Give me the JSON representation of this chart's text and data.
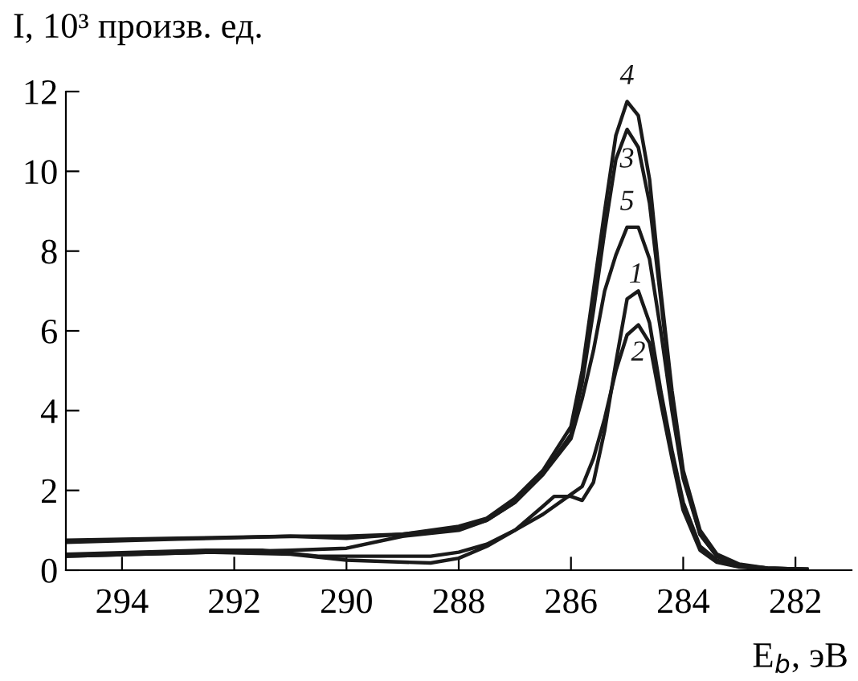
{
  "chart_data": {
    "type": "line",
    "xlabel": "E$_{b}$, эВ",
    "ylabel": "I, 10³ произв. ед.",
    "xlim": [
      295,
      281
    ],
    "xticks": [
      294,
      292,
      290,
      288,
      286,
      284,
      282
    ],
    "ylim": [
      0,
      12
    ],
    "yticks": [
      0,
      2,
      4,
      6,
      8,
      10,
      12
    ],
    "grid": false,
    "legend": false,
    "marker": "none",
    "line_style": "solid",
    "series": [
      {
        "name": "1",
        "color": "#1a1a1a",
        "x": [
          295,
          292.5,
          291.5,
          290.5,
          289,
          288.5,
          288,
          287.5,
          287,
          286.5,
          286.3,
          286,
          285.8,
          285.6,
          285.4,
          285.2,
          285.0,
          284.8,
          284.6,
          284.4,
          284.2,
          284.0,
          283.7,
          283.4,
          283.0,
          282.5,
          281.8
        ],
        "values": [
          0.4,
          0.5,
          0.5,
          0.35,
          0.35,
          0.35,
          0.45,
          0.65,
          1.0,
          1.6,
          1.85,
          1.85,
          1.75,
          2.2,
          3.5,
          5.2,
          6.8,
          7.0,
          6.2,
          4.5,
          3.0,
          1.7,
          0.6,
          0.25,
          0.1,
          0.04,
          0.02
        ]
      },
      {
        "name": "2",
        "color": "#1a1a1a",
        "x": [
          295,
          292.5,
          291,
          290,
          288.5,
          288,
          287.5,
          287,
          286.5,
          286,
          285.8,
          285.6,
          285.4,
          285.2,
          285.0,
          284.8,
          284.6,
          284.4,
          284.2,
          284.0,
          283.7,
          283.4,
          283.0,
          282.5,
          281.8
        ],
        "values": [
          0.35,
          0.45,
          0.4,
          0.25,
          0.18,
          0.3,
          0.6,
          1.0,
          1.4,
          1.9,
          2.1,
          2.8,
          3.8,
          5.0,
          5.9,
          6.15,
          5.7,
          4.2,
          2.8,
          1.5,
          0.5,
          0.2,
          0.08,
          0.03,
          0.02
        ]
      },
      {
        "name": "3",
        "color": "#1a1a1a",
        "x": [
          295,
          293,
          291,
          290,
          289,
          288,
          287.5,
          287,
          286.5,
          286,
          285.8,
          285.6,
          285.4,
          285.2,
          285.0,
          284.8,
          284.6,
          284.4,
          284.2,
          284.0,
          283.7,
          283.4,
          283.0,
          282.5,
          281.8
        ],
        "values": [
          0.75,
          0.8,
          0.85,
          0.8,
          0.9,
          1.05,
          1.25,
          1.7,
          2.4,
          3.4,
          4.7,
          6.5,
          8.5,
          10.3,
          11.05,
          10.6,
          9.2,
          6.8,
          4.3,
          2.4,
          0.9,
          0.35,
          0.12,
          0.05,
          0.02
        ]
      },
      {
        "name": "4",
        "color": "#1a1a1a",
        "x": [
          295,
          293,
          291,
          290,
          289,
          288,
          287.5,
          287,
          286.5,
          286,
          285.8,
          285.6,
          285.4,
          285.2,
          285.0,
          284.8,
          284.6,
          284.4,
          284.2,
          284.0,
          283.7,
          283.4,
          283.0,
          282.5,
          281.8
        ],
        "values": [
          0.7,
          0.78,
          0.85,
          0.85,
          0.9,
          1.1,
          1.3,
          1.8,
          2.5,
          3.6,
          5.0,
          7.0,
          9.0,
          10.9,
          11.75,
          11.4,
          9.8,
          7.0,
          4.5,
          2.5,
          1.0,
          0.4,
          0.15,
          0.05,
          0.02
        ]
      },
      {
        "name": "5",
        "color": "#1a1a1a",
        "x": [
          295,
          292.5,
          291,
          290,
          289,
          288,
          287.5,
          287,
          286.5,
          286,
          285.8,
          285.6,
          285.4,
          285.2,
          285.0,
          284.8,
          284.6,
          284.4,
          284.2,
          284.0,
          283.7,
          283.4,
          283.0,
          282.5,
          281.8
        ],
        "values": [
          0.35,
          0.45,
          0.5,
          0.55,
          0.85,
          1.0,
          1.25,
          1.7,
          2.4,
          3.3,
          4.3,
          5.5,
          7.0,
          7.9,
          8.6,
          8.6,
          7.8,
          6.0,
          4.0,
          2.3,
          0.9,
          0.35,
          0.12,
          0.05,
          0.02
        ]
      }
    ]
  }
}
